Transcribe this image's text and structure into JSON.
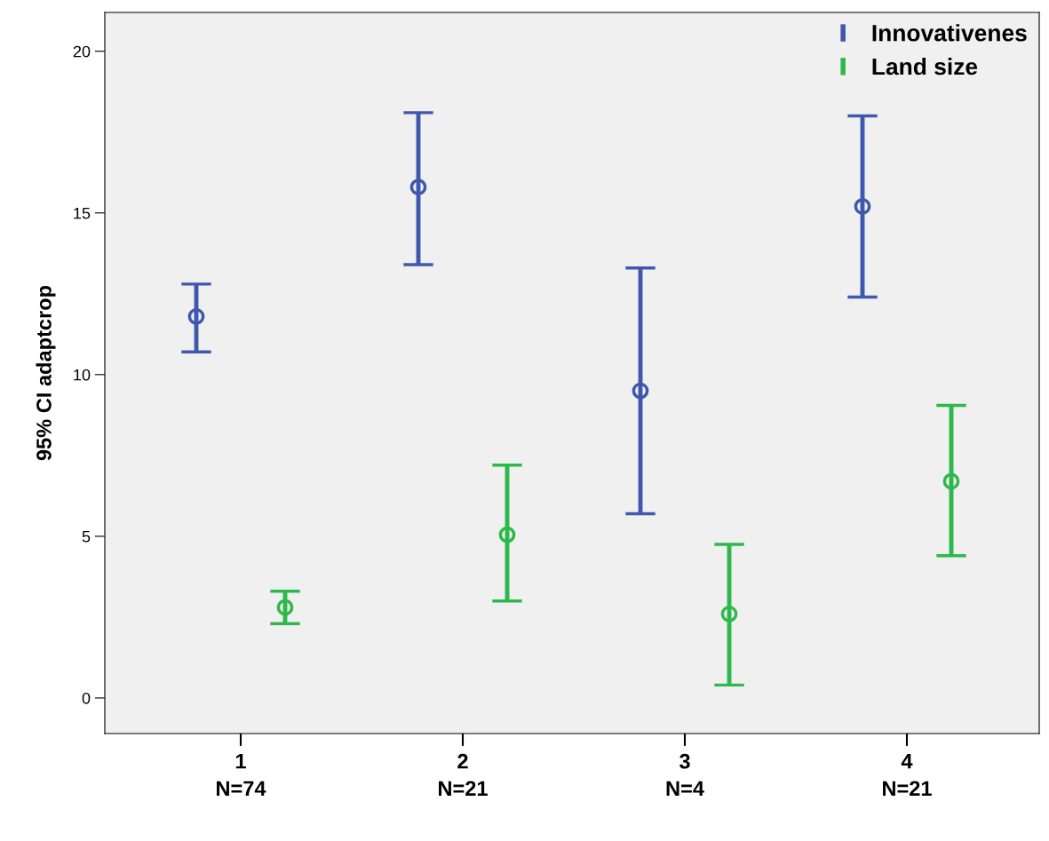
{
  "chart_data": {
    "type": "scatter",
    "ylabel": "95% CI adaptcrop",
    "categories": [
      "1",
      "2",
      "3",
      "4"
    ],
    "series": [
      {
        "name": "Innovativenes",
        "color": "#3f58ae",
        "values": [
          11.8,
          15.8,
          9.5,
          15.2
        ],
        "errors": [
          [
            10.7,
            12.8
          ],
          [
            13.4,
            18.1
          ],
          [
            5.7,
            13.3
          ],
          [
            12.4,
            18.0
          ]
        ]
      },
      {
        "name": "Land size",
        "color": "#2eb84b",
        "values": [
          2.8,
          5.05,
          2.6,
          6.7
        ],
        "errors": [
          [
            2.3,
            3.3
          ],
          [
            3.0,
            7.2
          ],
          [
            0.4,
            4.75
          ],
          [
            4.4,
            9.05
          ]
        ]
      }
    ],
    "annotations": [
      "N=74",
      "N=21",
      "N=4",
      "N=21"
    ],
    "ylim": [
      -1.1,
      21.2
    ],
    "yticks": [
      0,
      5,
      10,
      15,
      20
    ],
    "marker": "circle",
    "grid": false,
    "legend": "top right"
  }
}
